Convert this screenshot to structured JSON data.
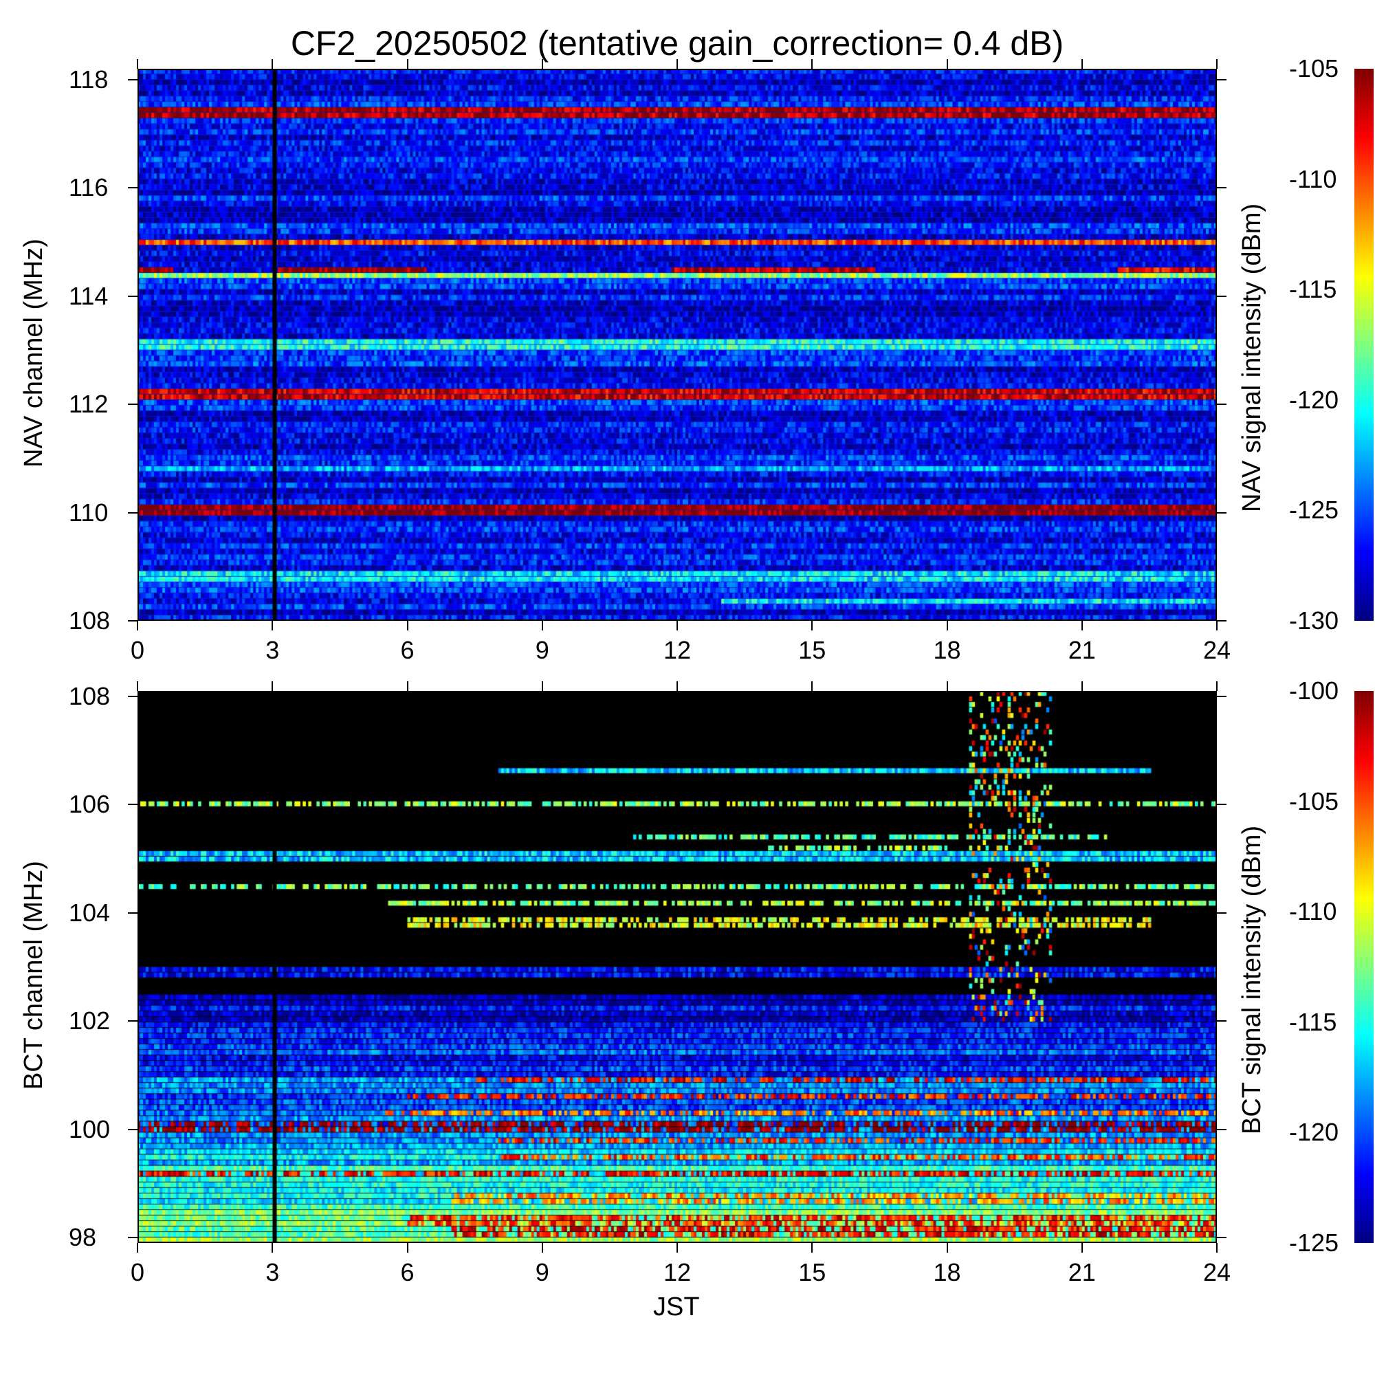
{
  "title": "CF2_20250502 (tentative gain_correction=  0.4 dB)",
  "chart_data": [
    {
      "type": "heatmap",
      "panel": "top",
      "xlabel": "",
      "ylabel": "NAV channel (MHz)",
      "colorbar_label": "NAV signal intensity (dBm)",
      "xlim": [
        0,
        24
      ],
      "ylim": [
        108,
        118.2
      ],
      "xticks": [
        0,
        3,
        6,
        9,
        12,
        15,
        18,
        21,
        24
      ],
      "yticks": [
        108,
        110,
        112,
        114,
        116,
        118
      ],
      "clim": [
        -130,
        -105
      ],
      "colorbar_ticks": [
        -130,
        -125,
        -120,
        -115,
        -110,
        -105
      ],
      "colormap": "jet",
      "background_level_dbm": -127,
      "data_gap_x": 3.05,
      "strong_channels": [
        {
          "freq": 110.05,
          "level": -105,
          "start": 0,
          "end": 24
        },
        {
          "freq": 112.2,
          "level": -107,
          "start": 0,
          "end": 24
        },
        {
          "freq": 115.0,
          "level": -110,
          "start": 0,
          "end": 24
        },
        {
          "freq": 117.4,
          "level": -106,
          "start": 0,
          "end": 24
        },
        {
          "freq": 114.5,
          "level": -105,
          "start": 0,
          "end": 0.8
        },
        {
          "freq": 114.5,
          "level": -105,
          "start": 3.1,
          "end": 6.4
        },
        {
          "freq": 114.5,
          "level": -106,
          "start": 11.9,
          "end": 16.4
        },
        {
          "freq": 114.5,
          "level": -108,
          "start": 21.8,
          "end": 24
        },
        {
          "freq": 114.35,
          "level": -117,
          "start": 0,
          "end": 24
        },
        {
          "freq": 113.1,
          "level": -120,
          "start": 0,
          "end": 24
        },
        {
          "freq": 108.8,
          "level": -121,
          "start": 0,
          "end": 24
        },
        {
          "freq": 108.35,
          "level": -121,
          "start": 13,
          "end": 24
        },
        {
          "freq": 110.8,
          "level": -123,
          "start": 0,
          "end": 24
        }
      ]
    },
    {
      "type": "heatmap",
      "panel": "bottom",
      "xlabel": "JST",
      "ylabel": "BCT channel (MHz)",
      "colorbar_label": "BCT signal intensity (dBm)",
      "xlim": [
        0,
        24
      ],
      "ylim": [
        97.9,
        108.1
      ],
      "xticks": [
        0,
        3,
        6,
        9,
        12,
        15,
        18,
        21,
        24
      ],
      "yticks": [
        98,
        100,
        102,
        104,
        106,
        108
      ],
      "clim": [
        -125,
        -100
      ],
      "colorbar_ticks": [
        -125,
        -120,
        -115,
        -110,
        -105,
        -100
      ],
      "colormap": "jet",
      "noise_floor": [
        {
          "freq": 98.0,
          "level": -113
        },
        {
          "freq": 99.0,
          "level": -115
        },
        {
          "freq": 100.0,
          "level": -118
        },
        {
          "freq": 101.0,
          "level": -120
        },
        {
          "freq": 101.6,
          "level": -121
        },
        {
          "freq": 102.5,
          "level": -124
        }
      ],
      "data_gap_x": 3.05,
      "strong_channels": [
        {
          "freq": 100.05,
          "level": -100,
          "start": 0,
          "end": 24
        },
        {
          "freq": 105.05,
          "level": -117,
          "start": 0,
          "end": 24
        },
        {
          "freq": 106.0,
          "level": -112,
          "start": 0,
          "end": 24
        },
        {
          "freq": 104.5,
          "level": -113,
          "start": 0,
          "end": 24
        },
        {
          "freq": 104.2,
          "level": -112,
          "start": 5.5,
          "end": 24
        },
        {
          "freq": 103.8,
          "level": -110,
          "start": 6,
          "end": 22.5
        },
        {
          "freq": 106.6,
          "level": -117,
          "start": 8,
          "end": 22.5
        },
        {
          "freq": 105.4,
          "level": -114,
          "start": 11,
          "end": 22
        },
        {
          "freq": 105.2,
          "level": -112,
          "start": 14,
          "end": 18
        },
        {
          "freq": 102.9,
          "level": -122,
          "start": 0,
          "end": 24
        },
        {
          "freq": 100.9,
          "level": -103,
          "start": 7.5,
          "end": 24
        },
        {
          "freq": 100.6,
          "level": -104,
          "start": 6,
          "end": 24
        },
        {
          "freq": 100.3,
          "level": -106,
          "start": 5.5,
          "end": 24
        },
        {
          "freq": 99.8,
          "level": -104,
          "start": 8,
          "end": 24
        },
        {
          "freq": 99.5,
          "level": -105,
          "start": 8,
          "end": 24
        },
        {
          "freq": 99.15,
          "level": -103,
          "start": 0,
          "end": 24
        },
        {
          "freq": 98.7,
          "level": -107,
          "start": 7,
          "end": 24
        },
        {
          "freq": 98.3,
          "level": -104,
          "start": 6,
          "end": 24
        },
        {
          "freq": 98.1,
          "level": -103,
          "start": 7,
          "end": 24
        }
      ],
      "evening_burst": {
        "start": 18.5,
        "end": 20.3,
        "low": 102.0,
        "high": 108.1
      }
    }
  ]
}
